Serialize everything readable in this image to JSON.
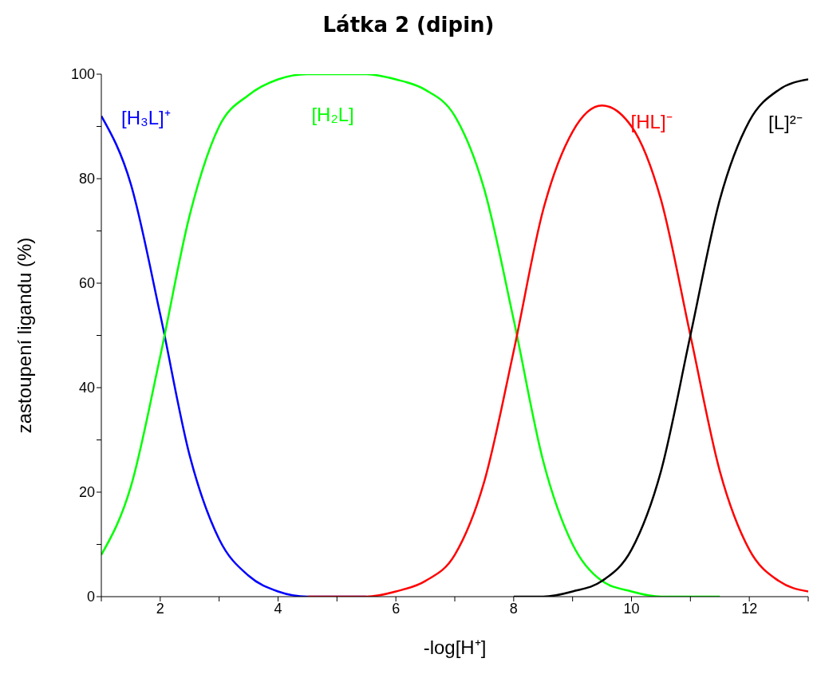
{
  "chart_data": {
    "type": "line",
    "title": "Látka 2 (dipin)",
    "xlabel": "-log[H⁺]",
    "ylabel": "zastoupení ligandu (%)",
    "x": [
      1,
      1.5,
      2,
      2.5,
      3,
      3.5,
      4,
      4.5,
      5,
      5.5,
      6,
      6.5,
      7,
      7.5,
      8,
      8.5,
      9,
      9.5,
      10,
      10.5,
      11,
      11.5,
      12,
      12.5,
      13
    ],
    "series": [
      {
        "name": "[H₃L]⁺",
        "color": "#0000ff",
        "values": [
          92,
          79,
          54,
          27,
          11,
          4,
          1,
          0,
          0,
          0,
          null,
          null,
          null,
          null,
          null,
          null,
          null,
          null,
          null,
          null,
          null,
          null,
          null,
          null,
          null
        ]
      },
      {
        "name": "[H₂L]",
        "color": "#00ff00",
        "values": [
          8,
          21,
          46,
          73,
          90,
          96,
          99,
          100,
          100,
          100,
          99,
          97,
          92,
          78,
          53,
          26,
          10,
          3,
          1,
          0,
          0,
          0,
          null,
          null,
          null
        ]
      },
      {
        "name": "[HL]⁻",
        "color": "#ff0000",
        "values": [
          null,
          null,
          null,
          null,
          null,
          null,
          null,
          0,
          0,
          0,
          1,
          3,
          8,
          22,
          47,
          74,
          89,
          94,
          90,
          76,
          50,
          24,
          9,
          3,
          1
        ]
      },
      {
        "name": "[L]²⁻",
        "color": "#000000",
        "values": [
          null,
          null,
          null,
          null,
          null,
          null,
          null,
          null,
          null,
          null,
          null,
          null,
          null,
          null,
          0,
          0,
          1,
          3,
          9,
          24,
          50,
          76,
          91,
          97,
          99
        ]
      }
    ],
    "xlim": [
      1,
      13
    ],
    "xticks": [
      {
        "value": 1,
        "label": null
      },
      2,
      {
        "value": 3,
        "label": null
      },
      4,
      {
        "value": 5,
        "label": null
      },
      6,
      {
        "value": 7,
        "label": null
      },
      8,
      {
        "value": 9,
        "label": null
      },
      10,
      {
        "value": 11,
        "label": null
      },
      12,
      {
        "value": 13,
        "label": null
      }
    ],
    "ylim": [
      0,
      100
    ],
    "yticks": [
      0,
      {
        "value": 10,
        "label": null
      },
      20,
      {
        "value": 30,
        "label": null
      },
      40,
      {
        "value": 50,
        "label": null
      },
      60,
      {
        "value": 70,
        "label": null
      },
      80,
      {
        "value": 90,
        "label": null
      },
      100
    ],
    "grid": false,
    "legend": false,
    "marker": "none",
    "line_style": "solid"
  }
}
